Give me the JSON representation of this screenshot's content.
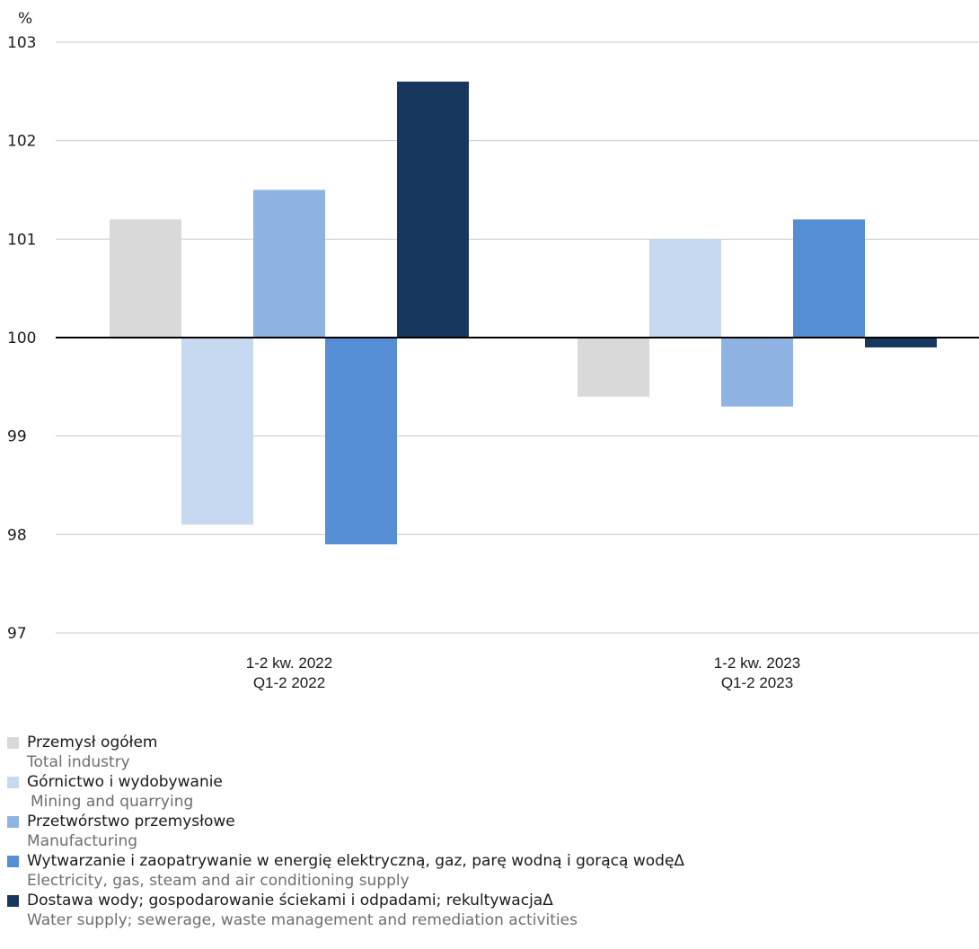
{
  "chart_data": {
    "type": "bar",
    "ylabel": "%",
    "ylim": [
      97,
      103
    ],
    "yticks": [
      97,
      98,
      99,
      100,
      101,
      102,
      103
    ],
    "baseline": 100,
    "grid": true,
    "categories": [
      {
        "line1": "1-2 kw. 2022",
        "line2": "Q1-2 2022"
      },
      {
        "line1": "1-2 kw. 2023",
        "line2": "Q1-2 2023"
      }
    ],
    "series": [
      {
        "name": "Przemysł ogółem",
        "name_en": "Total industry",
        "color": "#d9d9d9",
        "values": [
          101.2,
          99.4
        ]
      },
      {
        "name": "Górnictwo i wydobywanie",
        "name_en": "Mining and quarrying",
        "color": "#c7d9f0",
        "values": [
          98.1,
          101.0
        ]
      },
      {
        "name": "Przetwórstwo przemysłowe",
        "name_en": "Manufacturing",
        "color": "#8fb4e3",
        "values": [
          101.5,
          99.3
        ]
      },
      {
        "name": "Wytwarzanie i zaopatrywanie w energię elektryczną, gaz, parę wodną i gorącą wodęΔ",
        "name_en": "Electricity, gas, steam and air conditioning supply",
        "color": "#558ed5",
        "values": [
          97.9,
          101.2
        ]
      },
      {
        "name": "Dostawa wody; gospodarowanie ściekami i odpadami; rekultywacjaΔ",
        "name_en": "Water supply; sewerage, waste management and remediation activities",
        "color": "#17375e",
        "values": [
          102.6,
          99.9
        ]
      }
    ],
    "legend_position": "bottom-left"
  }
}
